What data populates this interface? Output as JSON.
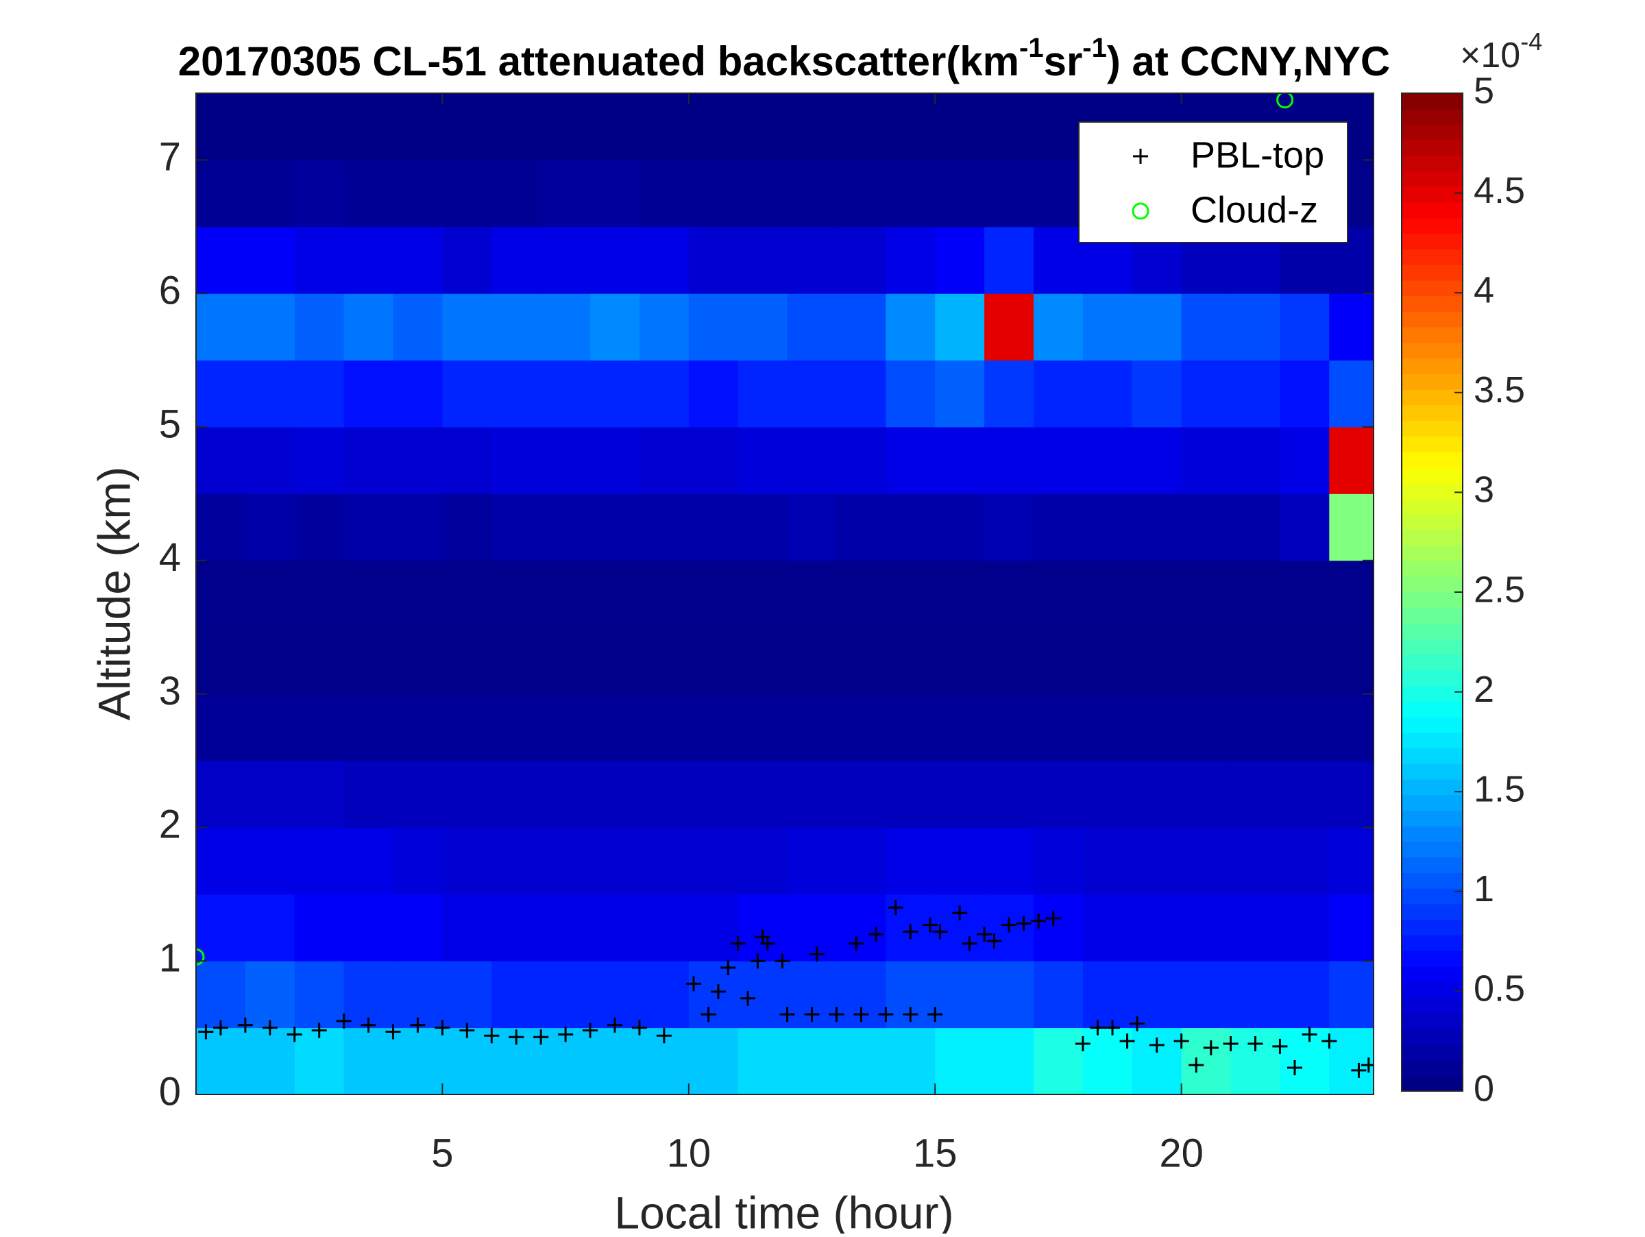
{
  "chart_data": {
    "type": "heatmap",
    "title": [
      {
        "text": "20170305  CL-51 attenuated backscatter(km"
      },
      {
        "text": "-1",
        "sup": true
      },
      {
        "text": "sr"
      },
      {
        "text": "-1",
        "sup": true
      },
      {
        "text": ") at CCNY,NYC"
      }
    ],
    "x_label": "Local time (hour)",
    "y_label": "Altitude (km)",
    "xlim": [
      0,
      23.9
    ],
    "xticks": [
      5,
      10,
      15,
      20
    ],
    "ylim": [
      0,
      7.5
    ],
    "yticks": [
      0,
      1,
      2,
      3,
      4,
      5,
      6,
      7
    ],
    "x": [
      0.5,
      1.5,
      2.5,
      3.5,
      4.5,
      5.5,
      6.5,
      7.5,
      8.5,
      9.5,
      10.5,
      11.5,
      12.5,
      13.5,
      14.5,
      15.5,
      16.5,
      17.5,
      18.5,
      19.5,
      20.5,
      21.5,
      22.5,
      23.5
    ],
    "y": [
      0.25,
      0.75,
      1.25,
      1.75,
      2.25,
      2.75,
      3.25,
      3.75,
      4.25,
      4.75,
      5.25,
      5.75,
      6.25,
      6.75,
      7.25
    ],
    "z": [
      [
        1.6,
        1.6,
        1.7,
        1.6,
        1.6,
        1.6,
        1.6,
        1.6,
        1.6,
        1.6,
        1.6,
        1.7,
        1.7,
        1.7,
        1.7,
        1.8,
        1.8,
        2.0,
        1.9,
        1.8,
        2.1,
        2.0,
        1.9,
        1.8
      ],
      [
        1.0,
        1.1,
        1.0,
        0.9,
        0.9,
        0.9,
        0.8,
        0.8,
        0.8,
        0.8,
        0.9,
        0.9,
        0.9,
        0.9,
        1.0,
        1.0,
        1.0,
        0.9,
        0.8,
        0.8,
        0.8,
        0.8,
        0.8,
        0.9
      ],
      [
        0.7,
        0.7,
        0.6,
        0.6,
        0.6,
        0.5,
        0.5,
        0.5,
        0.5,
        0.5,
        0.5,
        0.6,
        0.6,
        0.6,
        0.7,
        0.7,
        0.7,
        0.6,
        0.5,
        0.5,
        0.5,
        0.5,
        0.5,
        0.6
      ],
      [
        0.5,
        0.5,
        0.5,
        0.5,
        0.45,
        0.4,
        0.4,
        0.4,
        0.4,
        0.4,
        0.4,
        0.4,
        0.45,
        0.45,
        0.5,
        0.5,
        0.5,
        0.45,
        0.4,
        0.4,
        0.4,
        0.4,
        0.4,
        0.45
      ],
      [
        0.35,
        0.35,
        0.35,
        0.3,
        0.3,
        0.3,
        0.3,
        0.3,
        0.3,
        0.3,
        0.3,
        0.3,
        0.3,
        0.3,
        0.3,
        0.3,
        0.3,
        0.3,
        0.3,
        0.3,
        0.3,
        0.3,
        0.3,
        0.3
      ],
      [
        0.12,
        0.12,
        0.12,
        0.12,
        0.12,
        0.12,
        0.12,
        0.12,
        0.12,
        0.12,
        0.12,
        0.12,
        0.12,
        0.12,
        0.12,
        0.12,
        0.12,
        0.12,
        0.12,
        0.12,
        0.12,
        0.12,
        0.12,
        0.12
      ],
      [
        0.05,
        0.05,
        0.05,
        0.05,
        0.05,
        0.05,
        0.05,
        0.05,
        0.05,
        0.05,
        0.05,
        0.05,
        0.05,
        0.05,
        0.05,
        0.05,
        0.05,
        0.05,
        0.05,
        0.05,
        0.05,
        0.05,
        0.05,
        0.05
      ],
      [
        0.06,
        0.06,
        0.06,
        0.06,
        0.06,
        0.06,
        0.06,
        0.06,
        0.06,
        0.06,
        0.06,
        0.06,
        0.06,
        0.06,
        0.06,
        0.06,
        0.06,
        0.06,
        0.06,
        0.06,
        0.06,
        0.06,
        0.06,
        0.06
      ],
      [
        0.15,
        0.2,
        0.15,
        0.2,
        0.2,
        0.15,
        0.2,
        0.2,
        0.2,
        0.2,
        0.2,
        0.2,
        0.25,
        0.2,
        0.2,
        0.2,
        0.25,
        0.2,
        0.2,
        0.2,
        0.2,
        0.2,
        0.3,
        2.5
      ],
      [
        0.4,
        0.4,
        0.45,
        0.4,
        0.4,
        0.4,
        0.45,
        0.45,
        0.45,
        0.4,
        0.4,
        0.45,
        0.45,
        0.45,
        0.5,
        0.5,
        0.5,
        0.5,
        0.5,
        0.5,
        0.45,
        0.45,
        0.5,
        4.5
      ],
      [
        0.8,
        0.8,
        0.8,
        0.7,
        0.7,
        0.8,
        0.8,
        0.8,
        0.8,
        0.8,
        0.7,
        0.8,
        0.8,
        0.8,
        1.0,
        1.1,
        0.9,
        0.8,
        0.8,
        0.9,
        0.8,
        0.8,
        0.7,
        1.0
      ],
      [
        1.2,
        1.2,
        1.1,
        1.2,
        1.1,
        1.2,
        1.2,
        1.2,
        1.3,
        1.2,
        1.1,
        1.1,
        1.0,
        1.0,
        1.3,
        1.5,
        4.5,
        1.3,
        1.2,
        1.2,
        1.0,
        1.0,
        0.9,
        0.6
      ],
      [
        0.6,
        0.6,
        0.5,
        0.5,
        0.5,
        0.4,
        0.5,
        0.5,
        0.5,
        0.5,
        0.4,
        0.4,
        0.4,
        0.4,
        0.5,
        0.6,
        0.8,
        0.5,
        0.5,
        0.4,
        0.3,
        0.3,
        0.2,
        0.2
      ],
      [
        0.1,
        0.1,
        0.15,
        0.1,
        0.1,
        0.1,
        0.1,
        0.15,
        0.15,
        0.1,
        0.1,
        0.1,
        0.1,
        0.1,
        0.1,
        0.1,
        0.1,
        0.1,
        0.05,
        0.05,
        0.05,
        0.05,
        0.05,
        0.05
      ],
      [
        0.03,
        0.03,
        0.03,
        0.03,
        0.03,
        0.03,
        0.03,
        0.03,
        0.03,
        0.03,
        0.03,
        0.03,
        0.03,
        0.03,
        0.03,
        0.03,
        0.03,
        0.03,
        0.03,
        0.03,
        0.03,
        0.03,
        0.03,
        0.03
      ]
    ],
    "colormap": "jet",
    "clim": [
      0,
      5
    ],
    "cticks": [
      0,
      0.5,
      1,
      1.5,
      2,
      2.5,
      3,
      3.5,
      4,
      4.5,
      5
    ],
    "c_exponent": [
      {
        "text": "×10"
      },
      {
        "text": "-4",
        "sup": true
      }
    ],
    "legend": "northeast",
    "series": [
      {
        "name": "PBL-top",
        "color": "#000000",
        "marker": "plus",
        "x": [
          0.2,
          0.5,
          1,
          1.5,
          2,
          2.5,
          3,
          3.5,
          4,
          4.5,
          5,
          5.5,
          6,
          6.5,
          7,
          7.5,
          8,
          8.5,
          9,
          9.5,
          10.1,
          10.4,
          10.6,
          10.8,
          11,
          11.2,
          11.4,
          11.5,
          11.6,
          11.9,
          12,
          12.5,
          13,
          13.5,
          14,
          14.5,
          15,
          12.6,
          13.4,
          13.8,
          14.2,
          14.5,
          14.9,
          15.1,
          15.5,
          15.7,
          16,
          16.2,
          16.5,
          16.8,
          17.1,
          17.4,
          18,
          18.3,
          18.6,
          18.9,
          19.1,
          19.5,
          20,
          20.3,
          20.6,
          21,
          21.5,
          22,
          22.3,
          22.6,
          23,
          23.6,
          23.8
        ],
        "values": [
          0.47,
          0.5,
          0.52,
          0.5,
          0.45,
          0.48,
          0.55,
          0.52,
          0.47,
          0.52,
          0.5,
          0.48,
          0.44,
          0.43,
          0.43,
          0.45,
          0.48,
          0.52,
          0.5,
          0.44,
          0.83,
          0.6,
          0.77,
          0.95,
          1.13,
          0.72,
          1.0,
          1.18,
          1.13,
          1.0,
          0.6,
          0.6,
          0.6,
          0.6,
          0.6,
          0.6,
          0.6,
          1.05,
          1.13,
          1.2,
          1.4,
          1.22,
          1.27,
          1.22,
          1.36,
          1.13,
          1.2,
          1.15,
          1.27,
          1.28,
          1.3,
          1.32,
          0.38,
          0.5,
          0.5,
          0.4,
          0.53,
          0.37,
          0.4,
          0.22,
          0.35,
          0.38,
          0.38,
          0.36,
          0.2,
          0.45,
          0.4,
          0.18,
          0.22
        ]
      },
      {
        "name": "Cloud-z",
        "color": "#00ff00",
        "marker": "circle",
        "x": [
          0,
          22.1
        ],
        "values": [
          1.03,
          7.45
        ]
      }
    ]
  }
}
